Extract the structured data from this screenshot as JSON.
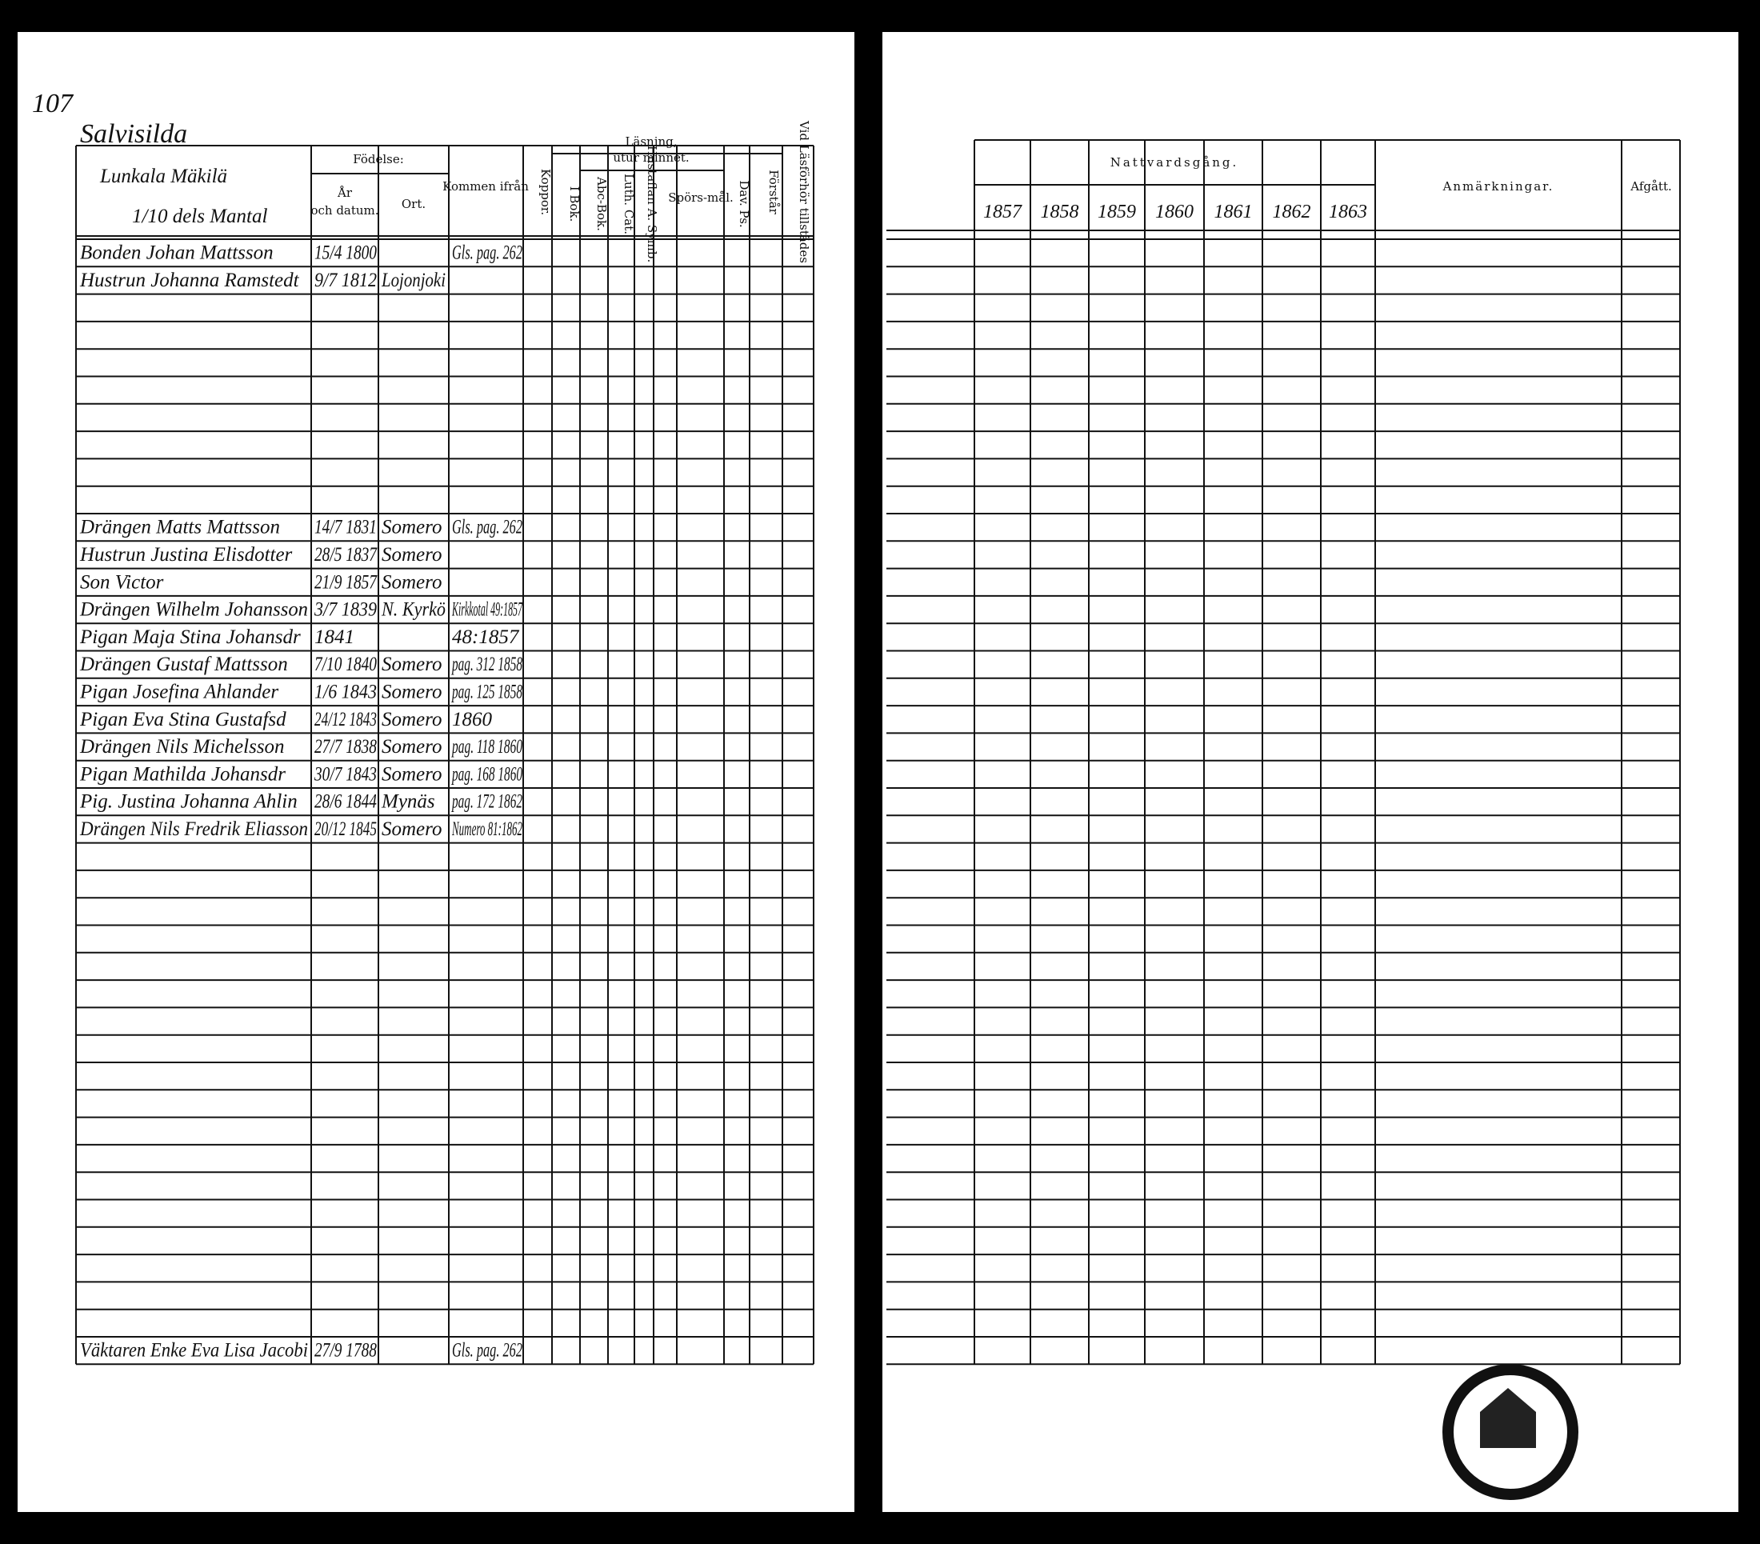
{
  "left_page": {
    "page_number": "107",
    "village": "Salvisilda",
    "household": "Lunkala Mäkilä",
    "household_share": "1/10 dels Mantal",
    "header": {
      "birth": "Födelse:",
      "birth_year_1": "År",
      "birth_year_2": "och datum.",
      "birth_place": "Ort.",
      "came_from": "Kommen ifrån",
      "smallpox": "Koppor.",
      "reading_1": "Läsning,",
      "reading_2": "utur minnet.",
      "in_book": "I Bok.",
      "abc_book": "Abc-Bok.",
      "luth_cat": "Luth. Cat.",
      "hustaflan": "Hustaflan A. Symb.",
      "questions": "Spörs-mål.",
      "dav_ps": "Dav. Ps.",
      "understands": "Förstår",
      "present": "Vid Läsförhör tillstädes"
    },
    "rows": [
      {
        "name": "Bonden Johan Mattsson",
        "born": "15/4 1800",
        "from": "Gls. pag. 262"
      },
      {
        "name": "Hustrun Johanna Ramstedt",
        "born": "9/7 1812",
        "place": "Lojonjoki"
      },
      null,
      null,
      null,
      null,
      null,
      null,
      null,
      null,
      {
        "name": "Drängen Matts Mattsson",
        "born": "14/7 1831",
        "place": "Somero",
        "from": "Gls. pag. 262"
      },
      {
        "name": "Hustrun Justina Elisdotter",
        "born": "28/5 1837",
        "place": "Somero"
      },
      {
        "name": "Son Victor",
        "born": "21/9 1857",
        "place": "Somero"
      },
      {
        "name": "Drängen Wilhelm Johansson",
        "born": "3/7 1839",
        "place": "N. Kyrkö",
        "from": "Kirkkotal 49:1857"
      },
      {
        "name": "Pigan Maja Stina Johansdr",
        "born": "1841",
        "from": "48:1857"
      },
      {
        "name": "Drängen Gustaf Mattsson",
        "born": "7/10 1840",
        "place": "Somero",
        "from": "pag. 312 1858"
      },
      {
        "name": "Pigan Josefina Ahlander",
        "born": "1/6 1843",
        "place": "Somero",
        "from": "pag. 125 1858"
      },
      {
        "name": "Pigan Eva Stina Gustafsd",
        "born": "24/12 1843",
        "place": "Somero",
        "from": "1860"
      },
      {
        "name": "Drängen Nils Michelsson",
        "born": "27/7 1838",
        "place": "Somero",
        "from": "pag. 118 1860"
      },
      {
        "name": "Pigan Mathilda Johansdr",
        "born": "30/7 1843",
        "place": "Somero",
        "from": "pag. 168 1860"
      },
      {
        "name": "Pig. Justina Johanna Ahlin",
        "born": "28/6 1844",
        "place": "Mynäs",
        "from": "pag. 172 1862"
      },
      {
        "name": "Drängen Nils Fredrik Eliasson",
        "born": "20/12 1845",
        "place": "Somero",
        "from": "Numero 81:1862"
      },
      null,
      null,
      null,
      null,
      null,
      null,
      null,
      null,
      null,
      null,
      null,
      null,
      null,
      null,
      null,
      null,
      null,
      null,
      {
        "name": "Väktaren Enke Eva Lisa Jacobi",
        "born": "27/9 1788",
        "from": "Gls. pag. 262"
      }
    ]
  },
  "right_page": {
    "communion": "Nattvardsgång.",
    "years": [
      "1857",
      "1858",
      "1859",
      "1860",
      "1861",
      "1862",
      "1863"
    ],
    "remarks": "Anmärkningar.",
    "departed": "Afgått."
  }
}
